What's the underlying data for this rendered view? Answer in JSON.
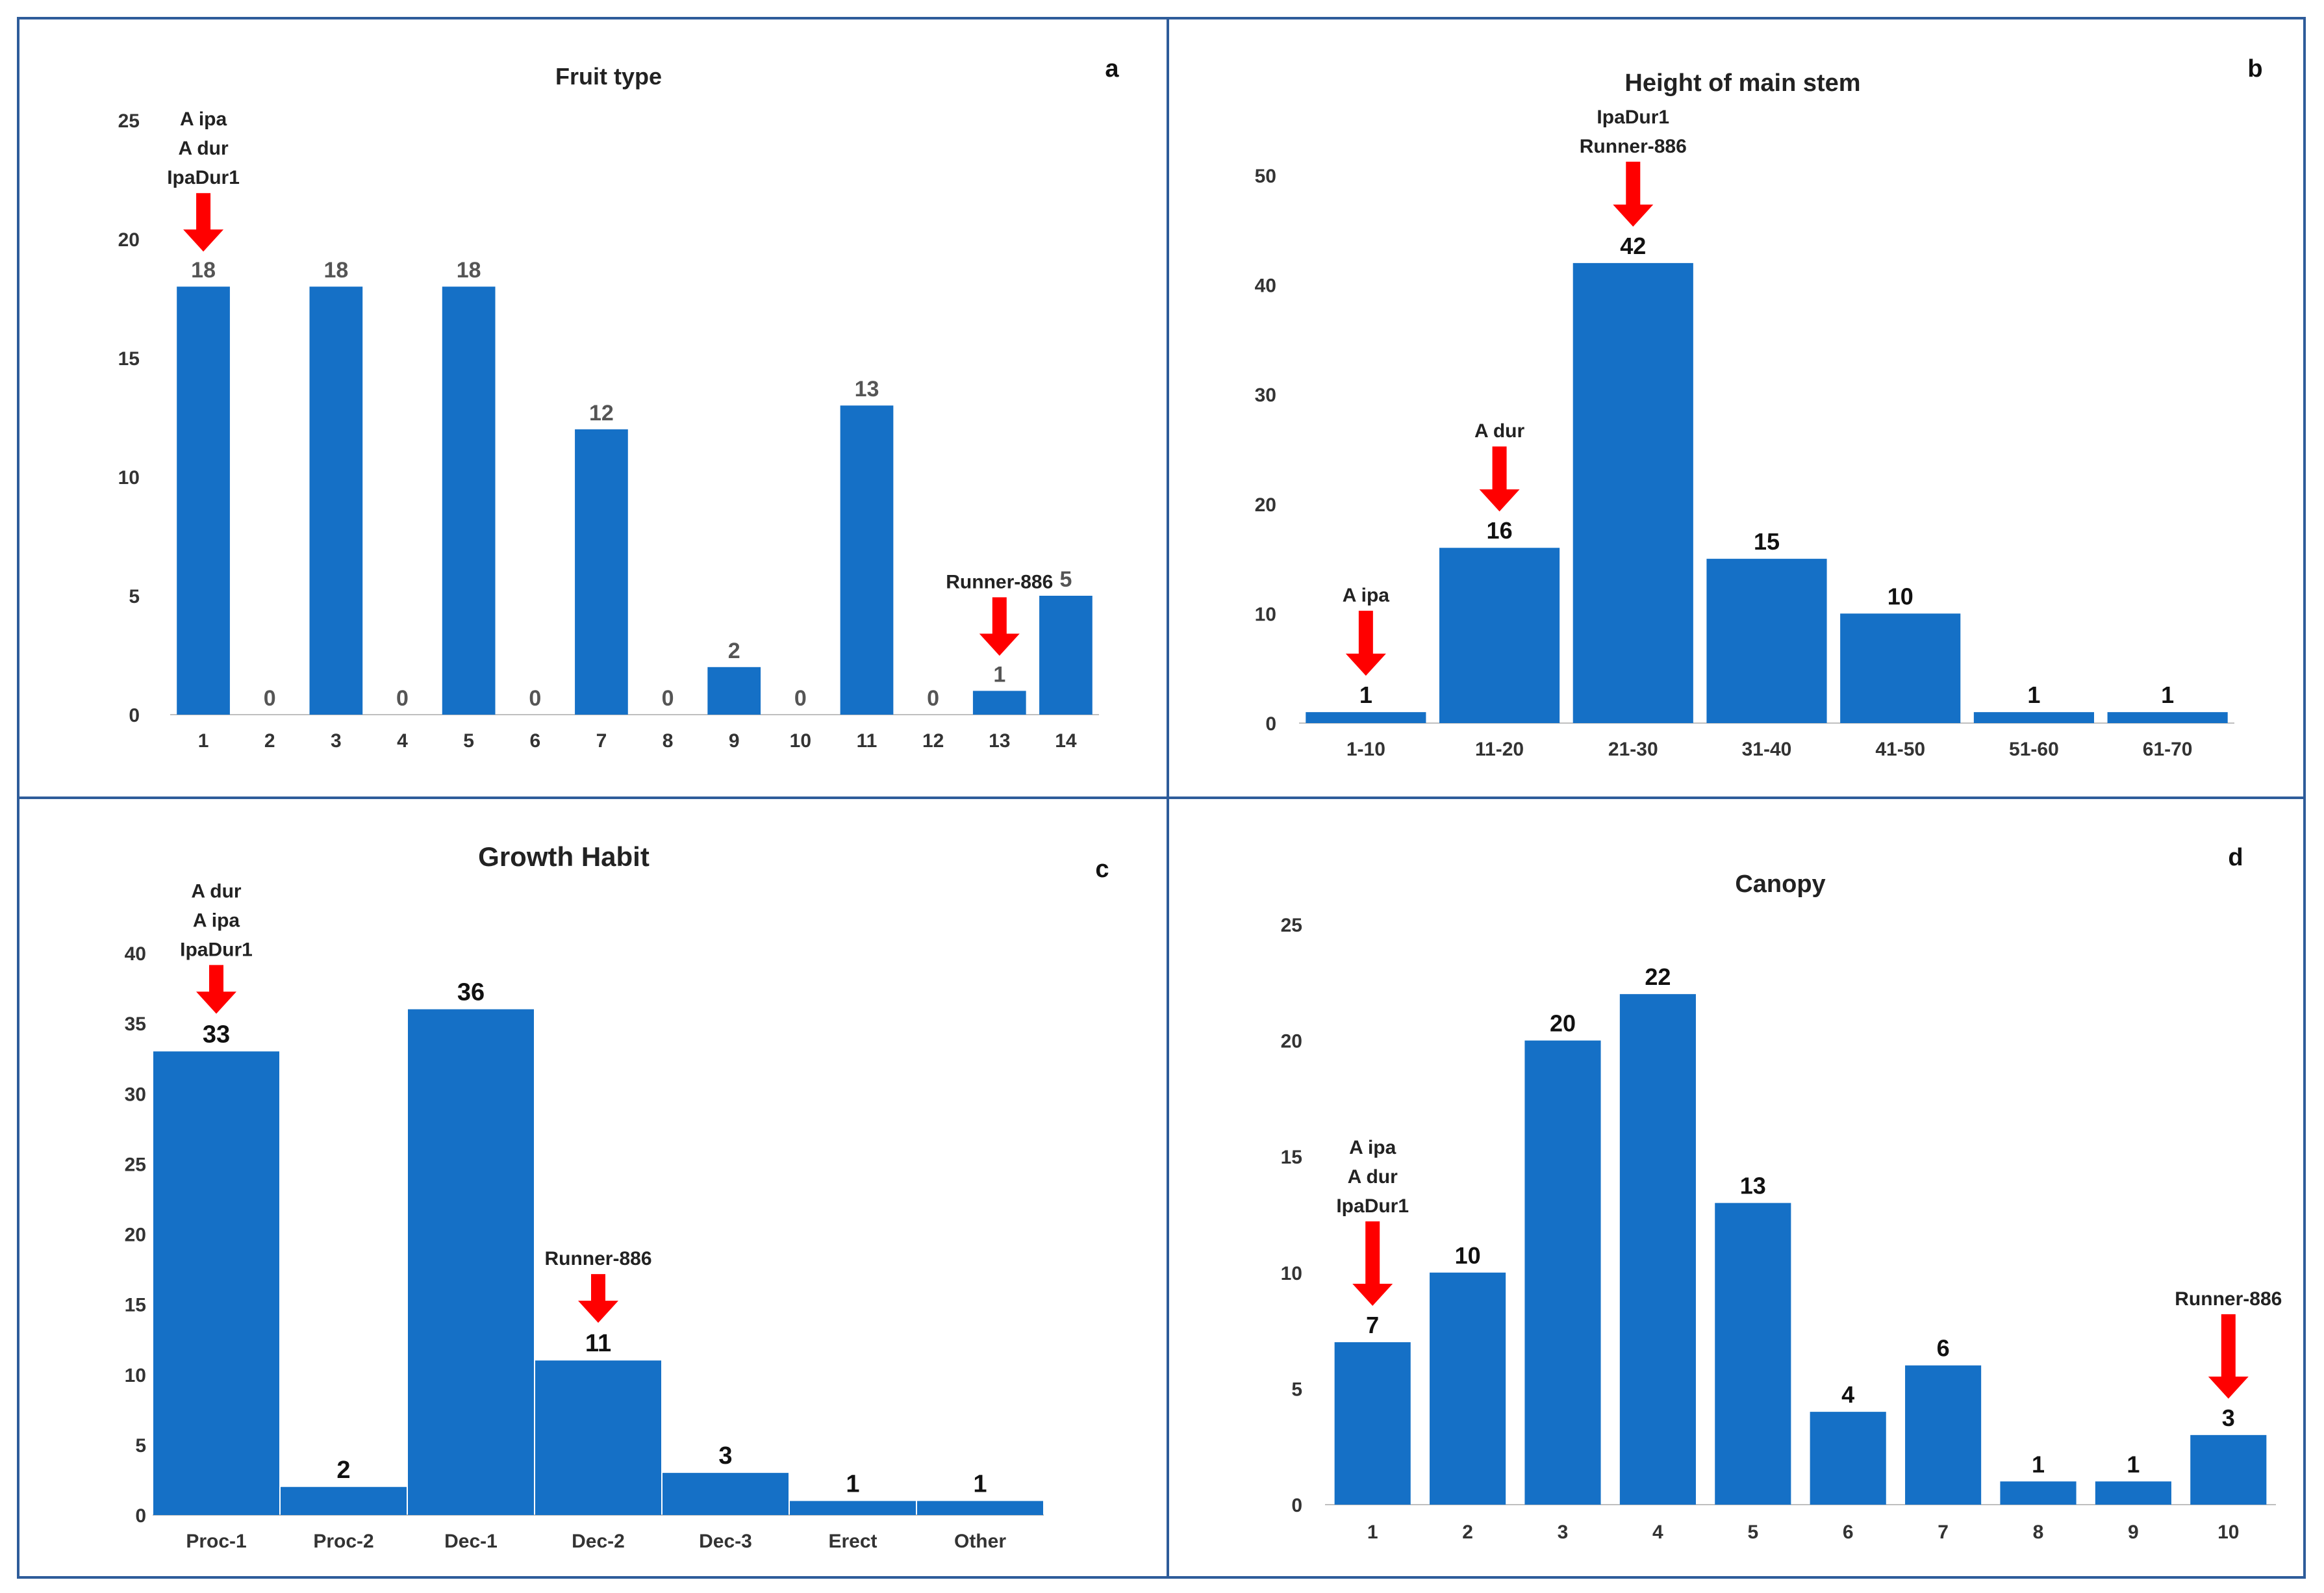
{
  "colors": {
    "bar": "#1570c6",
    "arrow": "#ff0000",
    "frame": "#2e5c9a",
    "labelGray": "#555555",
    "labelDark": "#111111"
  },
  "chart_data": [
    {
      "id": "a",
      "type": "bar",
      "panel_letter": "a",
      "title": "Fruit type",
      "xlabel": "",
      "ylabel": "",
      "categories": [
        "1",
        "2",
        "3",
        "4",
        "5",
        "6",
        "7",
        "8",
        "9",
        "10",
        "11",
        "12",
        "13",
        "14"
      ],
      "values": [
        18,
        0,
        18,
        0,
        18,
        0,
        12,
        0,
        2,
        0,
        13,
        0,
        1,
        5
      ],
      "ylim": [
        0,
        25
      ],
      "yticks": [
        0,
        5,
        10,
        15,
        20,
        25
      ],
      "annotations": [
        {
          "category_index": 0,
          "lines": [
            "A ipa",
            "A dur",
            "IpaDur1"
          ]
        },
        {
          "category_index": 12,
          "lines": [
            "Runner-886"
          ]
        }
      ]
    },
    {
      "id": "b",
      "type": "bar",
      "panel_letter": "b",
      "title": "Height of main stem",
      "xlabel": "",
      "ylabel": "",
      "categories": [
        "1-10",
        "11-20",
        "21-30",
        "31-40",
        "41-50",
        "51-60",
        "61-70"
      ],
      "values": [
        1,
        16,
        42,
        15,
        10,
        1,
        1
      ],
      "ylim": [
        0,
        50
      ],
      "yticks": [
        0,
        10,
        20,
        30,
        40,
        50
      ],
      "annotations": [
        {
          "category_index": 0,
          "lines": [
            "A ipa"
          ]
        },
        {
          "category_index": 1,
          "lines": [
            "A dur"
          ]
        },
        {
          "category_index": 2,
          "lines": [
            "IpaDur1",
            "Runner-886"
          ]
        }
      ]
    },
    {
      "id": "c",
      "type": "bar",
      "panel_letter": "c",
      "title": "Growth Habit",
      "xlabel": "",
      "ylabel": "",
      "categories": [
        "Proc-1",
        "Proc-2",
        "Dec-1",
        "Dec-2",
        "Dec-3",
        "Erect",
        "Other"
      ],
      "values": [
        33,
        2,
        36,
        11,
        3,
        1,
        1
      ],
      "ylim": [
        0,
        40
      ],
      "yticks": [
        0,
        5,
        10,
        15,
        20,
        25,
        30,
        35,
        40
      ],
      "annotations": [
        {
          "category_index": 0,
          "lines": [
            "A dur",
            "A ipa",
            "IpaDur1"
          ]
        },
        {
          "category_index": 3,
          "lines": [
            "Runner-886"
          ]
        }
      ]
    },
    {
      "id": "d",
      "type": "bar",
      "panel_letter": "d",
      "title": "Canopy",
      "xlabel": "",
      "ylabel": "",
      "categories": [
        "1",
        "2",
        "3",
        "4",
        "5",
        "6",
        "7",
        "8",
        "9",
        "10"
      ],
      "values": [
        7,
        10,
        20,
        22,
        13,
        4,
        6,
        1,
        1,
        3
      ],
      "ylim": [
        0,
        25
      ],
      "yticks": [
        0,
        5,
        10,
        15,
        20,
        25
      ],
      "annotations": [
        {
          "category_index": 0,
          "lines": [
            "A ipa",
            "A dur",
            "IpaDur1"
          ]
        },
        {
          "category_index": 9,
          "lines": [
            "Runner-886"
          ]
        }
      ]
    }
  ]
}
